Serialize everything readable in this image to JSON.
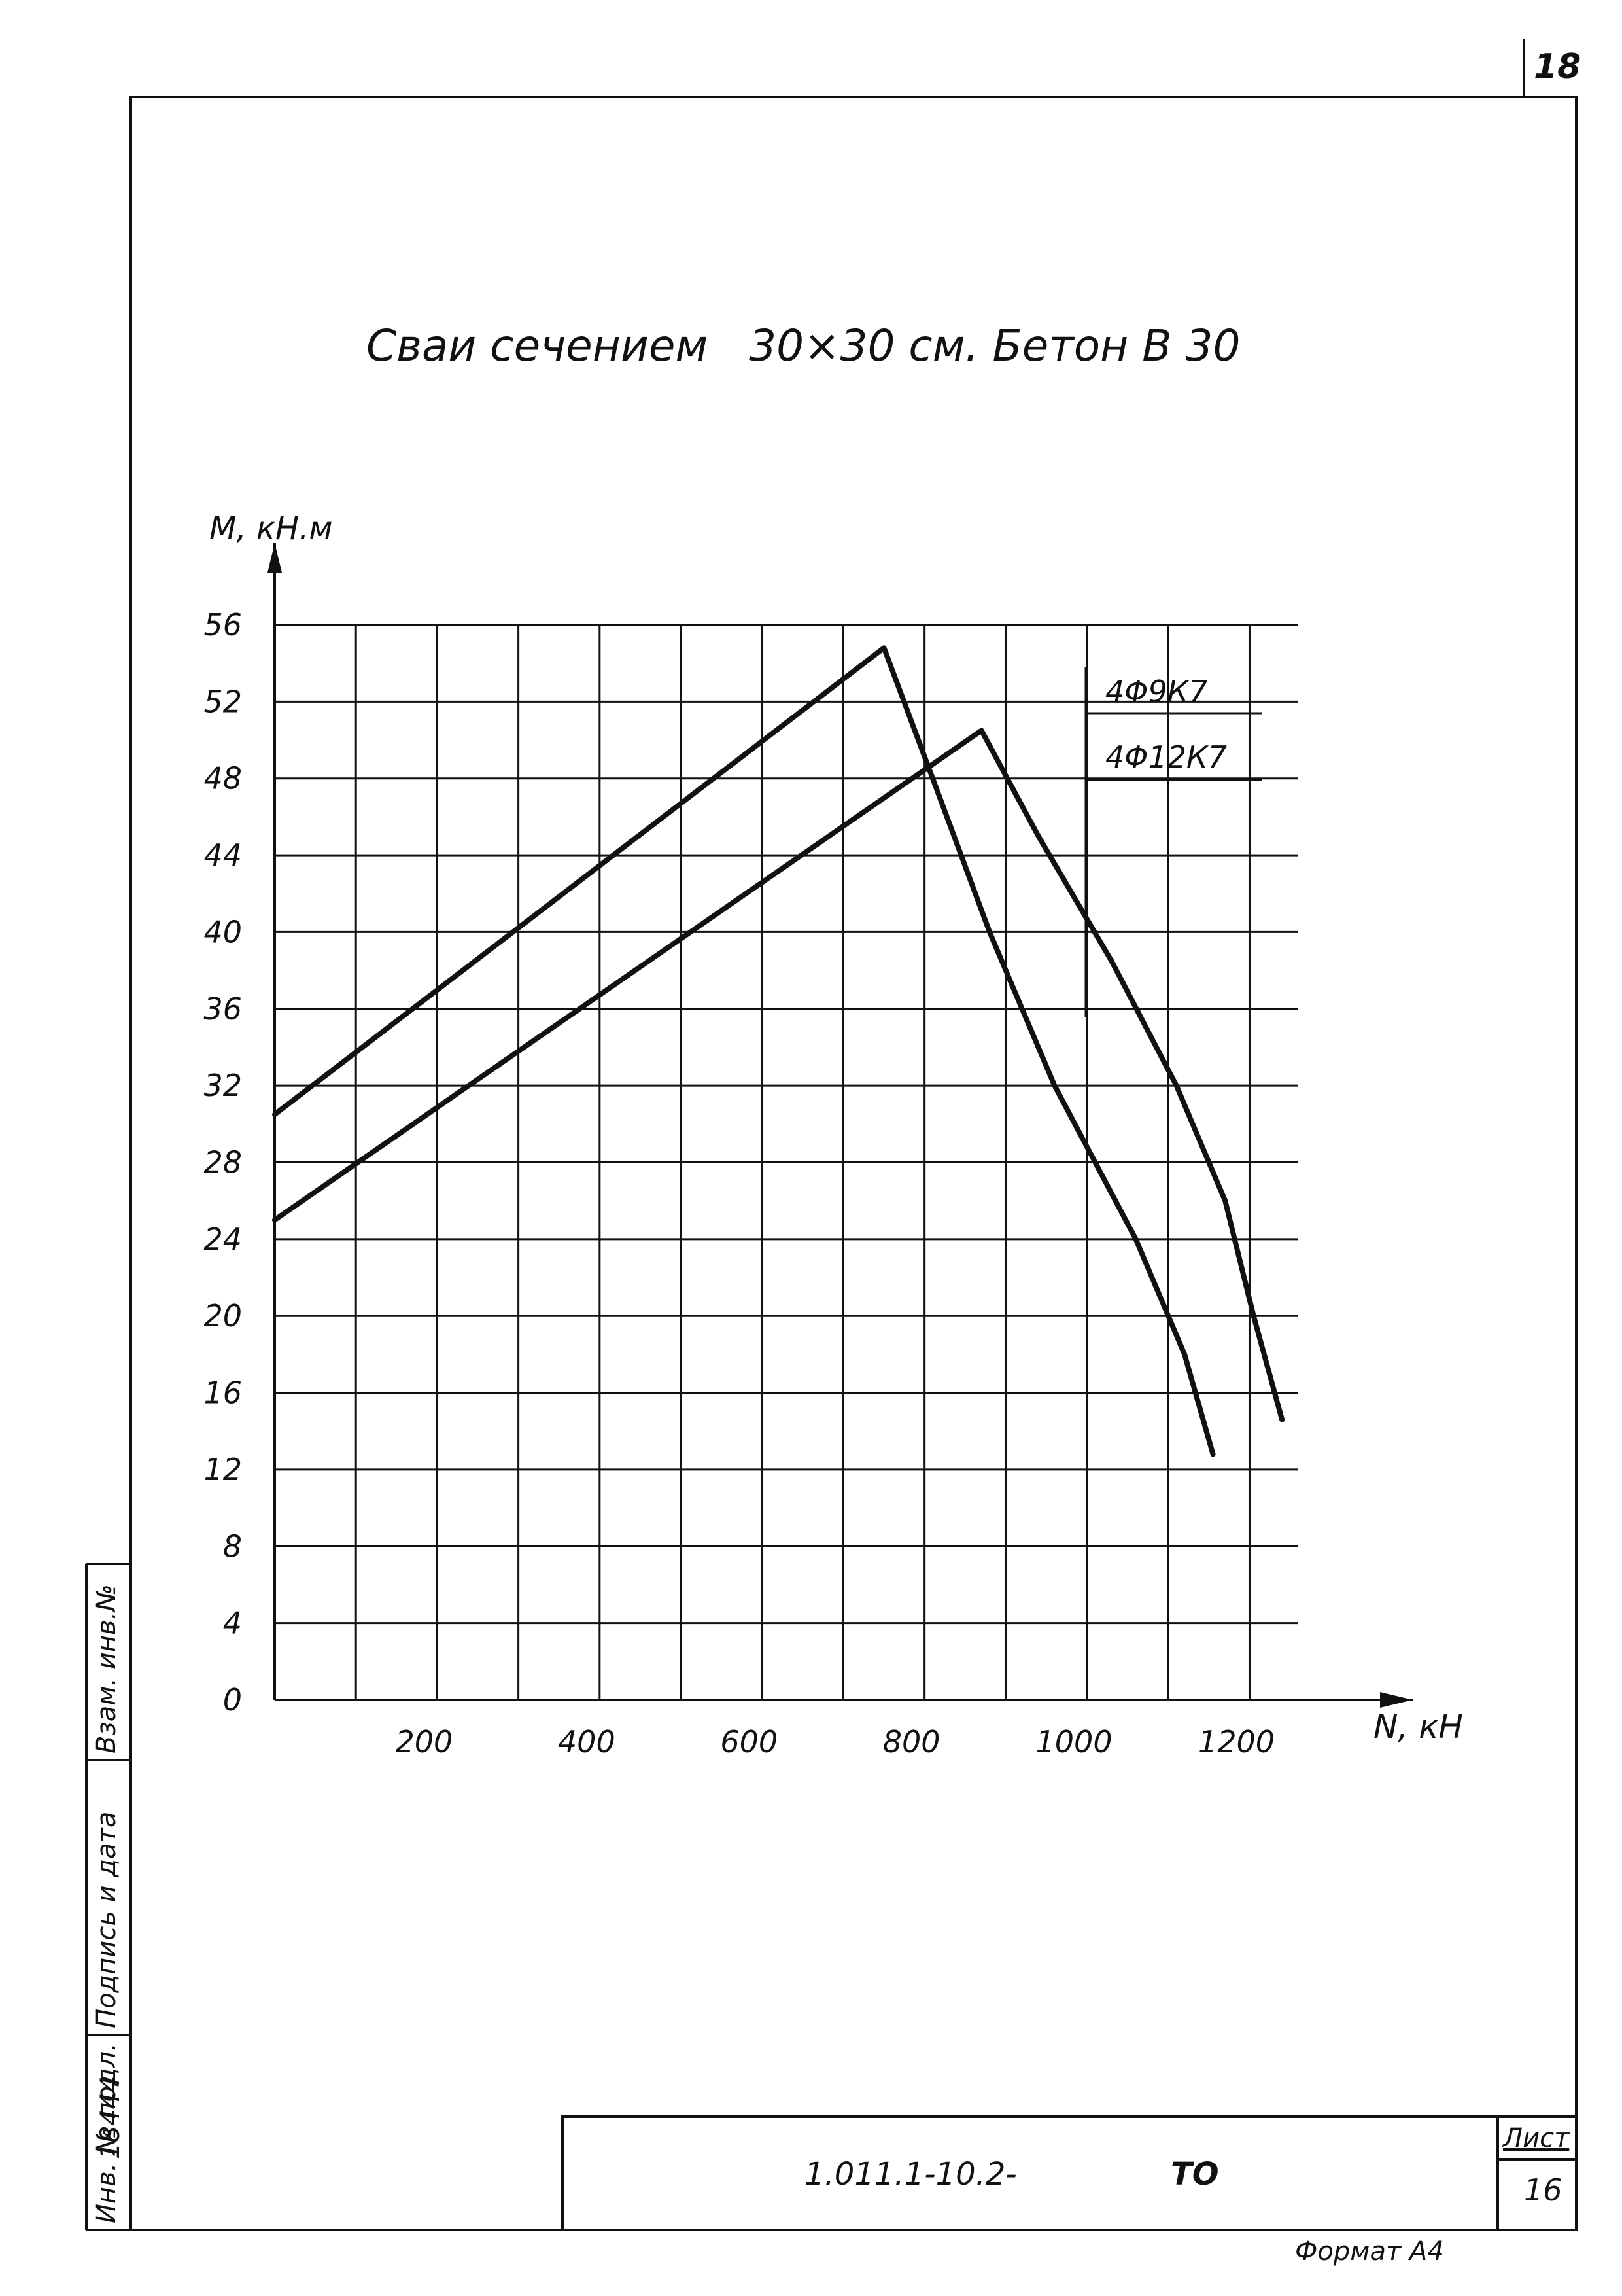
{
  "sheet": {
    "page_number": "18",
    "title": "Сваи сечением   30×30 см. Бетон В 30",
    "designation": "1.011.1-10.2-",
    "doc_code": "ТО",
    "sheet_label": "Лист",
    "sheet_number": "16",
    "format_label": "Формат А4"
  },
  "side_stamp": {
    "inv_orig_label": "Инв. № подл.",
    "inv_orig_value": "18444",
    "signature_label": "Подпись и дата",
    "replace_label": "Взам. инв.№"
  },
  "chart_data": {
    "type": "line",
    "title": "Сваи сечением 30×30 см. Бетон В 30",
    "xlabel": "N, кН",
    "ylabel": "M, кН.м",
    "xlim": [
      0,
      1260
    ],
    "ylim": [
      0,
      56
    ],
    "x_ticks": [
      200,
      400,
      600,
      800,
      1000,
      1200
    ],
    "y_ticks": [
      0,
      4,
      8,
      12,
      16,
      20,
      24,
      28,
      32,
      36,
      40,
      44,
      48,
      52,
      56
    ],
    "grid": true,
    "legend_position": "top-right",
    "series": [
      {
        "name": "4Φ9К7",
        "x": [
          0,
          750,
          810,
          880,
          960,
          1060,
          1120,
          1155
        ],
        "y": [
          30.5,
          54.8,
          48,
          40,
          32,
          24,
          18,
          12.8
        ]
      },
      {
        "name": "4Φ12К7",
        "x": [
          0,
          870,
          940,
          1030,
          1110,
          1170,
          1205,
          1240
        ],
        "y": [
          25,
          50.5,
          45,
          38.5,
          32,
          26,
          20,
          14.6
        ]
      }
    ]
  }
}
